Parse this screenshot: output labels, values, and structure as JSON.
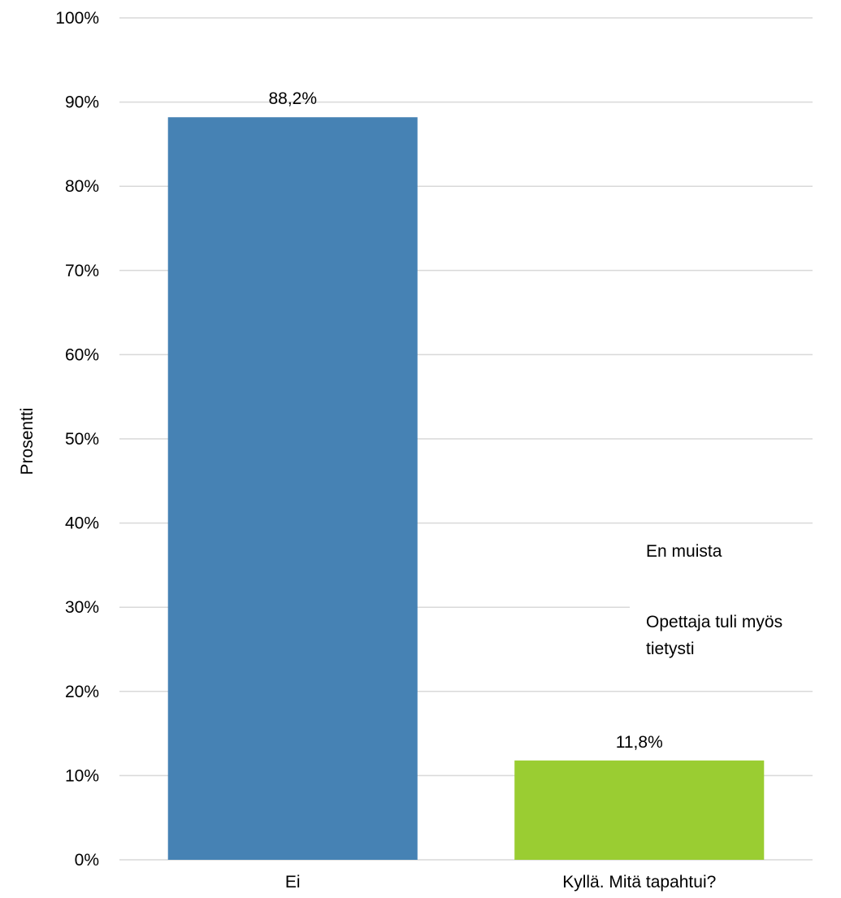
{
  "chart_data": {
    "type": "bar",
    "categories": [
      "Ei",
      "Kyllä. Mitä tapahtui?"
    ],
    "values": [
      88.2,
      11.8
    ],
    "data_labels": [
      "88,2%",
      "11,8%"
    ],
    "colors": [
      "#4682b4",
      "#9acd32"
    ],
    "ylabel": "Prosentti",
    "ylim": [
      0,
      100
    ],
    "yticks": [
      0,
      10,
      20,
      30,
      40,
      50,
      60,
      70,
      80,
      90,
      100
    ],
    "ytick_labels": [
      "0%",
      "10%",
      "20%",
      "30%",
      "40%",
      "50%",
      "60%",
      "70%",
      "80%",
      "90%",
      "100%"
    ],
    "grid": true,
    "legend": "none",
    "annotations": [
      "En muista",
      "Opettaja tuli myös",
      "tietysti"
    ]
  }
}
